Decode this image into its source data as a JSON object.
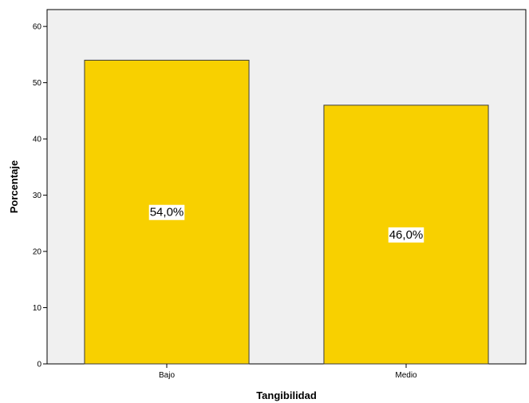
{
  "chart_data": {
    "type": "bar",
    "categories": [
      "Bajo",
      "Medio"
    ],
    "values": [
      54.0,
      46.0
    ],
    "data_labels": [
      "54,0%",
      "46,0%"
    ],
    "xlabel": "Tangibilidad",
    "ylabel": "Porcentaje",
    "ylim": [
      0,
      63
    ],
    "yticks": [
      0,
      10,
      20,
      30,
      40,
      50,
      60
    ],
    "grid": false,
    "legend": "none",
    "colors": {
      "bar_fill": "#f8d000",
      "bar_stroke": "#3c3c3c",
      "plot_background": "#f0f0f0",
      "axis": "#000000"
    }
  }
}
